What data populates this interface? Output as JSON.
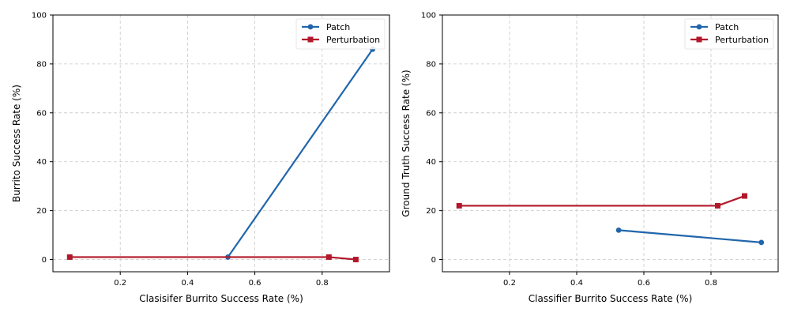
{
  "chart_data": [
    {
      "type": "line",
      "xlabel": "Clasisifer Burrito Success Rate (%)",
      "ylabel": "Burrito Success Rate (%)",
      "xlim": [
        0.0,
        1.0
      ],
      "ylim": [
        -5,
        100
      ],
      "xticks": [
        "0.2",
        "0.4",
        "0.6",
        "0.8"
      ],
      "yticks": [
        "0",
        "20",
        "40",
        "60",
        "80",
        "100"
      ],
      "grid": true,
      "legend_position": "top-right",
      "series": [
        {
          "name": "Patch",
          "color": "#2166ac",
          "marker": "circle",
          "points": [
            [
              0.52,
              1
            ],
            [
              0.95,
              86
            ]
          ]
        },
        {
          "name": "Perturbation",
          "color": "#b2182b",
          "marker": "square",
          "points": [
            [
              0.05,
              1
            ],
            [
              0.82,
              1
            ],
            [
              0.9,
              0
            ]
          ]
        }
      ]
    },
    {
      "type": "line",
      "xlabel": "Classifier Burrito Success Rate (%)",
      "ylabel": "Ground Truth Success Rate (%)",
      "xlim": [
        0.0,
        1.0
      ],
      "ylim": [
        -5,
        100
      ],
      "xticks": [
        "0.2",
        "0.4",
        "0.6",
        "0.8"
      ],
      "yticks": [
        "0",
        "20",
        "40",
        "60",
        "80",
        "100"
      ],
      "grid": true,
      "legend_position": "top-right",
      "series": [
        {
          "name": "Patch",
          "color": "#2166ac",
          "marker": "circle",
          "points": [
            [
              0.525,
              12
            ],
            [
              0.95,
              7
            ]
          ]
        },
        {
          "name": "Perturbation",
          "color": "#b2182b",
          "marker": "square",
          "points": [
            [
              0.05,
              22
            ],
            [
              0.82,
              22
            ],
            [
              0.9,
              26
            ]
          ]
        }
      ]
    }
  ]
}
